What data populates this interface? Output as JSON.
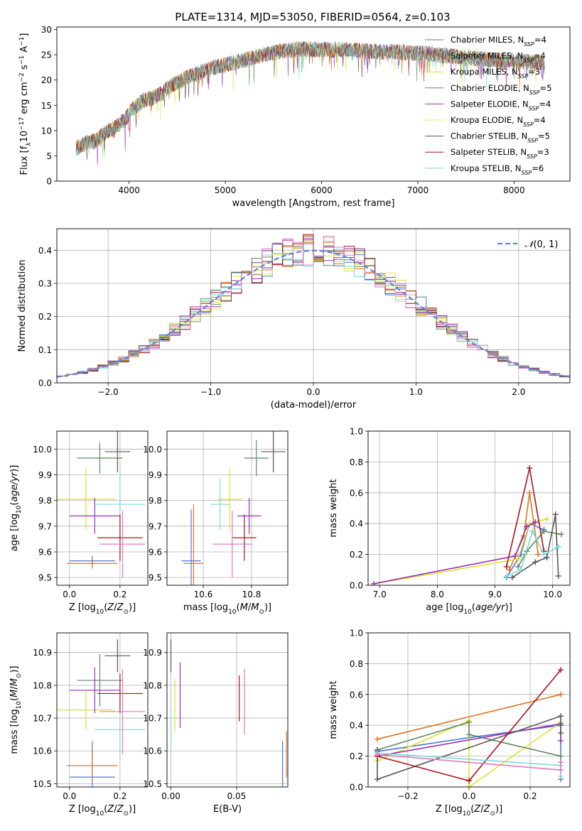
{
  "figure": {
    "title": "PLATE=1314, MJD=53050, FIBERID=0564, z=0.103"
  },
  "colors": {
    "series": [
      "#4b78d1",
      "#e0731c",
      "#dfe12e",
      "#5f8a5f",
      "#9a2fb3",
      "#e3e45a",
      "#555555",
      "#a8141c",
      "#7fd8d8",
      "#e377c2"
    ]
  },
  "chart_data": [
    {
      "id": "spectrum",
      "type": "line",
      "xlabel": "wavelength [Angstrom, rest frame]",
      "ylabel": "Flux [f_λ 10^-17 erg cm^-2 s^-1 A^-1]",
      "xlim": [
        3250,
        8580
      ],
      "ylim": [
        0,
        30.5
      ],
      "xticks": [
        4000,
        5000,
        6000,
        7000,
        8000
      ],
      "yticks": [
        0,
        5,
        10,
        15,
        20,
        25,
        30
      ],
      "continuum": {
        "x": [
          3450,
          3550,
          3650,
          3750,
          3850,
          3950,
          4050,
          4150,
          4250,
          4350,
          4450,
          4600,
          4800,
          5000,
          5200,
          5400,
          5600,
          5800,
          6000,
          6200,
          6400,
          6600,
          6800,
          7000,
          7200,
          7400,
          7600,
          7800,
          8000,
          8200,
          8320
        ],
        "y": [
          6.5,
          7.5,
          8.0,
          9.5,
          10.5,
          12.0,
          14.5,
          16.0,
          16.5,
          17.5,
          19.0,
          20.5,
          22.0,
          23.0,
          24.0,
          25.0,
          25.8,
          26.2,
          26.0,
          26.0,
          25.8,
          25.6,
          25.5,
          25.3,
          25.0,
          24.7,
          24.3,
          24.0,
          23.8,
          23.5,
          23.3
        ]
      },
      "legend": [
        {
          "label": "Chabrier MILES, N_SSP=4",
          "color": "#4b78d1"
        },
        {
          "label": "Salpeter MILES, N_SSP=4",
          "color": "#e0731c"
        },
        {
          "label": "Kroupa MILES, N_SSP=3",
          "color": "#dfe12e"
        },
        {
          "label": "Chabrier ELODIE, N_SSP=5",
          "color": "#5f8a5f"
        },
        {
          "label": "Salpeter ELODIE, N_SSP=4",
          "color": "#9a2fb3"
        },
        {
          "label": "Kroupa ELODIE, N_SSP=4",
          "color": "#e3e45a"
        },
        {
          "label": "Chabrier STELIB, N_SSP=5",
          "color": "#555555"
        },
        {
          "label": "Salpeter STELIB, N_SSP=3",
          "color": "#a8141c"
        },
        {
          "label": "Kroupa STELIB, N_SSP=6",
          "color": "#7fd8d8"
        }
      ],
      "legend_position": "right"
    },
    {
      "id": "residuals",
      "type": "histogram",
      "xlabel": "(data-model)/error",
      "ylabel": "Normed distribution",
      "xlim": [
        -2.5,
        2.5
      ],
      "ylim": [
        0,
        0.465
      ],
      "xticks": [
        -2,
        -1,
        0,
        1,
        2
      ],
      "yticks": [
        0.0,
        0.1,
        0.2,
        0.3,
        0.4
      ],
      "bin_width": 0.1,
      "reference": {
        "label": "N(0,1)",
        "color": "#5b84d6"
      },
      "legend_position": "top-right",
      "grid": true
    },
    {
      "id": "age_vs_Z",
      "type": "scatter",
      "xlabel": "Z [log10(Z/Z⊙)]",
      "ylabel": "age [log10(age/yr)]",
      "xlim": [
        -0.05,
        0.31
      ],
      "ylim": [
        9.47,
        10.07
      ],
      "xticks": [
        0.0,
        0.2
      ],
      "yticks": [
        9.5,
        9.6,
        9.7,
        9.8,
        9.9,
        10.0
      ],
      "points": [
        {
          "color": "#4b78d1",
          "x": 0.09,
          "xerr": 0.09,
          "y": 9.565,
          "yerr": 0.02
        },
        {
          "color": "#e0731c",
          "x": 0.09,
          "xerr": 0.1,
          "y": 9.555,
          "yerr": 0.02
        },
        {
          "color": "#dfe12e",
          "x": 0.065,
          "xerr": 0.115,
          "y": 9.805,
          "yerr": 0.12
        },
        {
          "color": "#5f8a5f",
          "x": 0.12,
          "xerr": 0.09,
          "y": 9.965,
          "yerr": 0.06
        },
        {
          "color": "#9a2fb3",
          "x": 0.1,
          "xerr": 0.1,
          "y": 9.74,
          "yerr": 0.07
        },
        {
          "color": "#7fd8d8",
          "x": 0.2,
          "xerr": 0.1,
          "y": 9.785,
          "yerr": 0.14
        },
        {
          "color": "#555555",
          "x": 0.19,
          "xerr": 0.05,
          "y": 9.99,
          "yerr": 0.08
        },
        {
          "color": "#a8141c",
          "x": 0.2,
          "xerr": 0.09,
          "y": 9.655,
          "yerr": 0.09
        },
        {
          "color": "#e377c2",
          "x": 0.21,
          "xerr": 0.09,
          "y": 9.63,
          "yerr": 0.13
        }
      ],
      "grid": true
    },
    {
      "id": "age_vs_mass",
      "type": "scatter",
      "xlabel": "mass [log10(M/M⊙)]",
      "ylabel": "",
      "xlim": [
        10.45,
        10.95
      ],
      "ylim": [
        9.47,
        10.07
      ],
      "xticks": [
        10.6,
        10.8
      ],
      "yticks": [
        9.5,
        9.6,
        9.7,
        9.8,
        9.9,
        10.0
      ],
      "points": [
        {
          "color": "#4b78d1",
          "x": 10.55,
          "xerr": 0.04,
          "y": 9.565,
          "yerr": 0.2
        },
        {
          "color": "#e0731c",
          "x": 10.56,
          "xerr": 0.04,
          "y": 9.555,
          "yerr": 0.23
        },
        {
          "color": "#dfe12e",
          "x": 10.71,
          "xerr": 0.05,
          "y": 9.805,
          "yerr": 0.12
        },
        {
          "color": "#5f8a5f",
          "x": 10.82,
          "xerr": 0.05,
          "y": 9.965,
          "yerr": 0.07
        },
        {
          "color": "#9a2fb3",
          "x": 10.79,
          "xerr": 0.05,
          "y": 9.74,
          "yerr": 0.07
        },
        {
          "color": "#7fd8d8",
          "x": 10.67,
          "xerr": 0.04,
          "y": 9.785,
          "yerr": 0.1
        },
        {
          "color": "#555555",
          "x": 10.89,
          "xerr": 0.05,
          "y": 9.99,
          "yerr": 0.08
        },
        {
          "color": "#a8141c",
          "x": 10.77,
          "xerr": 0.05,
          "y": 9.655,
          "yerr": 0.09
        },
        {
          "color": "#e377c2",
          "x": 10.72,
          "xerr": 0.08,
          "y": 9.63,
          "yerr": 0.13
        }
      ],
      "grid": true
    },
    {
      "id": "weight_vs_age",
      "type": "line",
      "xlabel": "age [log10(age/yr)]",
      "ylabel": "mass weight",
      "xlim": [
        6.8,
        10.3
      ],
      "ylim": [
        0,
        1.0
      ],
      "xticks": [
        7,
        8,
        9,
        10
      ],
      "yticks": [
        0.0,
        0.2,
        0.4,
        0.6,
        0.8,
        1.0
      ],
      "series": [
        {
          "color": "#4b78d1",
          "x": [
            9.2,
            9.45,
            9.6,
            9.85
          ],
          "y": [
            0.05,
            0.2,
            0.4,
            0.36
          ]
        },
        {
          "color": "#e0731c",
          "x": [
            9.25,
            9.5,
            9.6,
            9.75
          ],
          "y": [
            0.1,
            0.32,
            0.6,
            0.2
          ]
        },
        {
          "color": "#dfe12e",
          "x": [
            6.9,
            9.4,
            9.6,
            9.9
          ],
          "y": [
            0.01,
            0.17,
            0.4,
            0.43
          ]
        },
        {
          "color": "#5f8a5f",
          "x": [
            9.4,
            9.55,
            9.85,
            10.15
          ],
          "y": [
            0.12,
            0.22,
            0.35,
            0.33
          ]
        },
        {
          "color": "#9a2fb3",
          "x": [
            6.9,
            9.35,
            9.55,
            9.7
          ],
          "y": [
            0.01,
            0.19,
            0.38,
            0.41
          ]
        },
        {
          "color": "#555555",
          "x": [
            9.3,
            9.7,
            9.9,
            10.05,
            10.1
          ],
          "y": [
            0.05,
            0.15,
            0.18,
            0.46,
            0.06
          ]
        },
        {
          "color": "#a8141c",
          "x": [
            9.2,
            9.6,
            9.85
          ],
          "y": [
            0.12,
            0.76,
            0.22
          ]
        },
        {
          "color": "#7fd8d8",
          "x": [
            9.2,
            9.45,
            9.65,
            9.85,
            10.1
          ],
          "y": [
            0.06,
            0.1,
            0.35,
            0.2,
            0.25
          ]
        }
      ],
      "grid": true
    },
    {
      "id": "mass_vs_Z",
      "type": "scatter",
      "xlabel": "Z [log10(Z/Z⊙)]",
      "ylabel": "mass [log10(M/M⊙)]",
      "xlim": [
        -0.05,
        0.31
      ],
      "ylim": [
        10.49,
        10.96
      ],
      "xticks": [
        0.0,
        0.2
      ],
      "yticks": [
        10.5,
        10.6,
        10.7,
        10.8,
        10.9
      ],
      "points": [
        {
          "color": "#4b78d1",
          "x": 0.09,
          "xerr": 0.09,
          "y": 10.52,
          "yerr": 0.11
        },
        {
          "color": "#e0731c",
          "x": 0.09,
          "xerr": 0.1,
          "y": 10.555,
          "yerr": 0.05
        },
        {
          "color": "#dfe12e",
          "x": 0.065,
          "xerr": 0.115,
          "y": 10.725,
          "yerr": 0.06
        },
        {
          "color": "#5f8a5f",
          "x": 0.12,
          "xerr": 0.09,
          "y": 10.815,
          "yerr": 0.08
        },
        {
          "color": "#9a2fb3",
          "x": 0.1,
          "xerr": 0.1,
          "y": 10.785,
          "yerr": 0.07
        },
        {
          "color": "#7fd8d8",
          "x": 0.2,
          "xerr": 0.1,
          "y": 10.665,
          "yerr": 0.08
        },
        {
          "color": "#555555",
          "x": 0.19,
          "xerr": 0.05,
          "y": 10.89,
          "yerr": 0.05
        },
        {
          "color": "#a8141c",
          "x": 0.2,
          "xerr": 0.09,
          "y": 10.775,
          "yerr": 0.06
        },
        {
          "color": "#e377c2",
          "x": 0.21,
          "xerr": 0.09,
          "y": 10.72,
          "yerr": 0.13
        }
      ],
      "grid": true
    },
    {
      "id": "mass_vs_ebv",
      "type": "scatter",
      "xlabel": "E(B-V)",
      "ylabel": "",
      "xlim": [
        -0.003,
        0.089
      ],
      "ylim": [
        10.49,
        10.96
      ],
      "xticks": [
        0.0,
        0.05
      ],
      "yticks": [
        10.5,
        10.6,
        10.7,
        10.8,
        10.9
      ],
      "points": [
        {
          "color": "#555555",
          "x": 0.0,
          "xerr": 0,
          "y": 10.89,
          "yerr": 0.05
        },
        {
          "color": "#7fd8d8",
          "x": 0.0,
          "xerr": 0,
          "y": 10.67,
          "yerr": 0.06
        },
        {
          "color": "#dfe12e",
          "x": 0.003,
          "xerr": 0,
          "y": 10.74,
          "yerr": 0.08
        },
        {
          "color": "#9a2fb3",
          "x": 0.007,
          "xerr": 0,
          "y": 10.77,
          "yerr": 0.1
        },
        {
          "color": "#a8141c",
          "x": 0.052,
          "xerr": 0,
          "y": 10.76,
          "yerr": 0.07
        },
        {
          "color": "#e377c2",
          "x": 0.056,
          "xerr": 0,
          "y": 10.75,
          "yerr": 0.1
        },
        {
          "color": "#4b78d1",
          "x": 0.085,
          "xerr": 0,
          "y": 10.55,
          "yerr": 0.08
        },
        {
          "color": "#e0731c",
          "x": 0.088,
          "xerr": 0,
          "y": 10.59,
          "yerr": 0.07
        }
      ],
      "grid": true
    },
    {
      "id": "weight_vs_Z",
      "type": "line",
      "xlabel": "Z [log10(Z/Z⊙)]",
      "ylabel": "mass weight",
      "xlim": [
        -0.33,
        0.33
      ],
      "ylim": [
        0,
        1.0
      ],
      "xticks": [
        -0.2,
        0.0,
        0.2
      ],
      "yticks": [
        0.0,
        0.2,
        0.4,
        0.6,
        0.8,
        1.0
      ],
      "series": [
        {
          "color": "#4b78d1",
          "x": [
            -0.3,
            0.0,
            0.3,
            0.3
          ],
          "y": [
            0.23,
            0.32,
            0.4,
            0.05
          ]
        },
        {
          "color": "#e0731c",
          "x": [
            -0.3,
            0.3
          ],
          "y": [
            0.31,
            0.6
          ]
        },
        {
          "color": "#dfe12e",
          "x": [
            -0.3,
            0.0,
            0.0,
            0.3
          ],
          "y": [
            0.17,
            0.43,
            0.0,
            0.42
          ]
        },
        {
          "color": "#5f8a5f",
          "x": [
            -0.3,
            0.0,
            0.0,
            0.3
          ],
          "y": [
            0.24,
            0.42,
            0.34,
            0.2
          ]
        },
        {
          "color": "#9a2fb3",
          "x": [
            -0.3,
            0.3,
            0.3
          ],
          "y": [
            0.2,
            0.41,
            0.3
          ]
        },
        {
          "color": "#555555",
          "x": [
            -0.3,
            -0.3,
            0.3,
            0.3
          ],
          "y": [
            0.24,
            0.05,
            0.46,
            0.35
          ]
        },
        {
          "color": "#a8141c",
          "x": [
            -0.3,
            0.0,
            0.3
          ],
          "y": [
            0.2,
            0.04,
            0.76
          ]
        },
        {
          "color": "#7fd8d8",
          "x": [
            -0.3,
            0.3,
            0.3
          ],
          "y": [
            0.22,
            0.14,
            0.07
          ]
        },
        {
          "color": "#e377c2",
          "x": [
            -0.3,
            0.3,
            0.3
          ],
          "y": [
            0.21,
            0.11,
            0.16
          ]
        }
      ],
      "grid": true
    }
  ]
}
